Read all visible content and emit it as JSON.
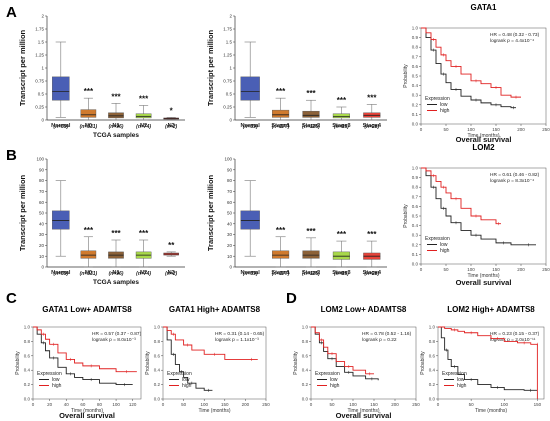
{
  "panel_letters": [
    "A",
    "B",
    "C",
    "D"
  ],
  "colors": {
    "normal": "#4a5fb5",
    "stage_n0": "#cf7a2e",
    "stage_n1": "#8c6239",
    "stage_n2": "#a8d84a",
    "stage_n3": "#e8433a",
    "km_low": "#222222",
    "km_high": "#e02020"
  },
  "chart_data": [
    {
      "id": "box-a1",
      "type": "box",
      "panel": "A",
      "ylabel": "Transcript per million",
      "xlabel": "TCGA samples",
      "ylim": [
        0,
        2
      ],
      "yticks": [
        "0",
        "0.25",
        "0.5",
        "0.75",
        "1",
        "1.25",
        "1.5",
        "1.75",
        "2"
      ],
      "categories": [
        "Normal",
        "N0",
        "N1",
        "N2",
        "N3"
      ],
      "n_labels": [
        "(n=59)",
        "(n=331)",
        "(n=96)",
        "(n=74)",
        "(n=2)"
      ],
      "significance": [
        "",
        "***",
        "***",
        "***",
        "*"
      ],
      "boxes": [
        {
          "min": 0.05,
          "q1": 0.38,
          "median": 0.55,
          "q3": 0.83,
          "max": 1.5
        },
        {
          "min": 0.0,
          "q1": 0.05,
          "median": 0.1,
          "q3": 0.2,
          "max": 0.42
        },
        {
          "min": 0.0,
          "q1": 0.04,
          "median": 0.08,
          "q3": 0.14,
          "max": 0.32
        },
        {
          "min": 0.0,
          "q1": 0.04,
          "median": 0.07,
          "q3": 0.12,
          "max": 0.28
        },
        {
          "min": 0.01,
          "q1": 0.02,
          "median": 0.03,
          "q3": 0.04,
          "max": 0.05
        }
      ]
    },
    {
      "id": "box-a2",
      "type": "box",
      "panel": "A",
      "ylabel": "Transcript per million",
      "xlabel": "",
      "ylim": [
        0,
        2
      ],
      "yticks": [
        "0",
        "0.25",
        "0.5",
        "0.75",
        "1",
        "1.25",
        "1.5",
        "1.75",
        "2"
      ],
      "categories": [
        "Normal",
        "Stage1",
        "Stage2",
        "Stage3",
        "Stage4"
      ],
      "n_labels": [
        "(n=59)",
        "(n=277)",
        "(n=125)",
        "(n=85)",
        "(n=28)"
      ],
      "significance": [
        "",
        "***",
        "***",
        "***",
        "***"
      ],
      "boxes": [
        {
          "min": 0.05,
          "q1": 0.38,
          "median": 0.55,
          "q3": 0.83,
          "max": 1.5
        },
        {
          "min": 0.0,
          "q1": 0.05,
          "median": 0.1,
          "q3": 0.19,
          "max": 0.42
        },
        {
          "min": 0.0,
          "q1": 0.05,
          "median": 0.09,
          "q3": 0.17,
          "max": 0.38
        },
        {
          "min": 0.0,
          "q1": 0.04,
          "median": 0.07,
          "q3": 0.12,
          "max": 0.25
        },
        {
          "min": 0.0,
          "q1": 0.05,
          "median": 0.09,
          "q3": 0.14,
          "max": 0.3
        }
      ]
    },
    {
      "id": "box-b1",
      "type": "box",
      "panel": "B",
      "ylabel": "Transcript per million",
      "xlabel": "TCGA samples",
      "ylim": [
        0,
        100
      ],
      "yticks": [
        "0",
        "10",
        "20",
        "30",
        "40",
        "50",
        "60",
        "70",
        "80",
        "90",
        "100"
      ],
      "categories": [
        "Normal",
        "N0",
        "N1",
        "N2",
        "N3"
      ],
      "n_labels": [
        "(n=59)",
        "(n=331)",
        "(n=96)",
        "(n=74)",
        "(n=2)"
      ],
      "significance": [
        "",
        "***",
        "***",
        "***",
        "**"
      ],
      "boxes": [
        {
          "min": 10,
          "q1": 35,
          "median": 43,
          "q3": 52,
          "max": 80
        },
        {
          "min": 0,
          "q1": 8,
          "median": 11,
          "q3": 15,
          "max": 28
        },
        {
          "min": 0,
          "q1": 8,
          "median": 11,
          "q3": 14,
          "max": 25
        },
        {
          "min": 0,
          "q1": 8,
          "median": 11,
          "q3": 14,
          "max": 25
        },
        {
          "min": 10,
          "q1": 11,
          "median": 12,
          "q3": 13,
          "max": 14
        }
      ]
    },
    {
      "id": "box-b2",
      "type": "box",
      "panel": "B",
      "ylabel": "Transcript per million",
      "xlabel": "",
      "ylim": [
        0,
        100
      ],
      "yticks": [
        "0",
        "10",
        "20",
        "30",
        "40",
        "50",
        "60",
        "70",
        "80",
        "90",
        "100"
      ],
      "categories": [
        "Normal",
        "Stage1",
        "Stage2",
        "Stage3",
        "Stage4"
      ],
      "n_labels": [
        "(n=59)",
        "(n=277)",
        "(n=125)",
        "(n=85)",
        "(n=28)"
      ],
      "significance": [
        "",
        "***",
        "***",
        "***",
        "***"
      ],
      "boxes": [
        {
          "min": 10,
          "q1": 35,
          "median": 43,
          "q3": 52,
          "max": 80
        },
        {
          "min": 0,
          "q1": 8,
          "median": 11,
          "q3": 15,
          "max": 28
        },
        {
          "min": 0,
          "q1": 8,
          "median": 11,
          "q3": 15,
          "max": 27
        },
        {
          "min": 0,
          "q1": 7,
          "median": 10,
          "q3": 14,
          "max": 24
        },
        {
          "min": 0,
          "q1": 7,
          "median": 10,
          "q3": 13,
          "max": 24
        }
      ]
    },
    {
      "id": "km-a",
      "type": "line",
      "panel": "A",
      "title": "GATA1",
      "hr": "HR = 0.48 (0.32 - 0.73)",
      "logrank": "logrank p = 4.4x10⁻⁴",
      "xlabel": "Time (months)",
      "ylabel": "Probability",
      "subtitle": "Overall survival",
      "xlim": [
        0,
        250
      ],
      "xticks": [
        "0",
        "50",
        "100",
        "150",
        "200",
        "250"
      ],
      "ylim": [
        0,
        1
      ],
      "yticks": [
        "0.0",
        "0.1",
        "0.2",
        "0.3",
        "0.4",
        "0.5",
        "0.6",
        "0.7",
        "0.8",
        "0.9",
        "1.0"
      ],
      "legend_title": "Expression",
      "series": [
        {
          "name": "low",
          "color": "#222222",
          "x": [
            0,
            10,
            20,
            30,
            40,
            50,
            60,
            80,
            100,
            120,
            140,
            160,
            180,
            190
          ],
          "y": [
            1,
            0.9,
            0.77,
            0.63,
            0.52,
            0.43,
            0.36,
            0.29,
            0.25,
            0.22,
            0.2,
            0.18,
            0.17,
            0.17
          ]
        },
        {
          "name": "high",
          "color": "#e02020",
          "x": [
            0,
            10,
            20,
            30,
            40,
            50,
            60,
            80,
            100,
            120,
            140,
            160,
            180,
            200
          ],
          "y": [
            1,
            0.95,
            0.88,
            0.8,
            0.72,
            0.66,
            0.6,
            0.52,
            0.45,
            0.42,
            0.38,
            0.3,
            0.28,
            0.28
          ]
        }
      ]
    },
    {
      "id": "km-b",
      "type": "line",
      "panel": "B",
      "title": "LOM2",
      "hr": "HR = 0.61 (0.46 - 0.82)",
      "logrank": "logrank p = 8.3x10⁻⁴",
      "xlabel": "Time (months)",
      "ylabel": "Probability",
      "subtitle": "Overall survival",
      "xlim": [
        0,
        250
      ],
      "xticks": [
        "0",
        "50",
        "100",
        "150",
        "200",
        "250"
      ],
      "ylim": [
        0,
        1
      ],
      "yticks": [
        "0.0",
        "0.1",
        "0.2",
        "0.3",
        "0.4",
        "0.5",
        "0.6",
        "0.7",
        "0.8",
        "0.9",
        "1.0"
      ],
      "legend_title": "Expression",
      "series": [
        {
          "name": "low",
          "color": "#222222",
          "x": [
            0,
            10,
            20,
            30,
            40,
            50,
            60,
            80,
            100,
            120,
            150,
            180,
            200,
            230
          ],
          "y": [
            1,
            0.92,
            0.8,
            0.68,
            0.58,
            0.5,
            0.43,
            0.35,
            0.3,
            0.26,
            0.22,
            0.2,
            0.2,
            0.2
          ]
        },
        {
          "name": "high",
          "color": "#e02020",
          "x": [
            0,
            10,
            20,
            30,
            40,
            50,
            60,
            80,
            100,
            120,
            150,
            160
          ],
          "y": [
            1,
            0.97,
            0.92,
            0.86,
            0.8,
            0.74,
            0.68,
            0.58,
            0.5,
            0.46,
            0.42,
            0.42
          ]
        }
      ]
    },
    {
      "id": "km-c1",
      "type": "line",
      "panel": "C",
      "title": "GATA1 Low+ ADAMTS8",
      "hr": "HR = 0.57 (0.37 - 0.87)",
      "logrank": "logrank p = 8.0x10⁻³",
      "xlabel": "Time (months)",
      "ylabel": "Probability",
      "subtitle": "Overall survival",
      "xlim": [
        0,
        130
      ],
      "xticks": [
        "0",
        "20",
        "40",
        "60",
        "80",
        "100",
        "120"
      ],
      "ylim": [
        0,
        1
      ],
      "yticks": [
        "0.0",
        "0.2",
        "0.4",
        "0.6",
        "0.8",
        "1.0"
      ],
      "legend_title": "Expression",
      "series": [
        {
          "name": "low",
          "color": "#222222",
          "x": [
            0,
            5,
            10,
            15,
            20,
            30,
            40,
            50,
            60,
            80,
            100,
            120
          ],
          "y": [
            1,
            0.9,
            0.78,
            0.67,
            0.57,
            0.44,
            0.35,
            0.3,
            0.27,
            0.22,
            0.2,
            0.2
          ]
        },
        {
          "name": "high",
          "color": "#e02020",
          "x": [
            0,
            5,
            10,
            15,
            20,
            30,
            40,
            50,
            60,
            80,
            100,
            125
          ],
          "y": [
            1,
            0.96,
            0.9,
            0.83,
            0.76,
            0.64,
            0.55,
            0.5,
            0.46,
            0.42,
            0.38,
            0.38
          ]
        }
      ]
    },
    {
      "id": "km-c2",
      "type": "line",
      "panel": "C",
      "title": "GATA1 High+ ADAMTS8",
      "hr": "HR = 0.31 (0.14 - 0.65)",
      "logrank": "logrank p = 1.1x10⁻³",
      "xlabel": "Time (months)",
      "ylabel": "Probability",
      "subtitle": "",
      "xlim": [
        0,
        250
      ],
      "xticks": [
        "0",
        "50",
        "100",
        "150",
        "200",
        "250"
      ],
      "ylim": [
        0,
        1
      ],
      "yticks": [
        "0.0",
        "0.2",
        "0.4",
        "0.6",
        "0.8",
        "1.0"
      ],
      "legend_title": "Expression",
      "series": [
        {
          "name": "low",
          "color": "#222222",
          "x": [
            0,
            10,
            20,
            30,
            40,
            50,
            60,
            80,
            100,
            120
          ],
          "y": [
            1,
            0.82,
            0.62,
            0.48,
            0.38,
            0.3,
            0.22,
            0.15,
            0.12,
            0.12
          ]
        },
        {
          "name": "high",
          "color": "#e02020",
          "x": [
            0,
            10,
            20,
            30,
            50,
            70,
            100,
            150,
            200,
            230
          ],
          "y": [
            1,
            0.95,
            0.9,
            0.82,
            0.75,
            0.68,
            0.62,
            0.55,
            0.55,
            0.55
          ]
        }
      ]
    },
    {
      "id": "km-d1",
      "type": "line",
      "panel": "D",
      "title": "LOM2 Low+ ADAMTS8",
      "hr": "HR = 0.78 (0.52 - 1.16)",
      "logrank": "logrank p = 0.22",
      "xlabel": "Time (months)",
      "ylabel": "Probability",
      "subtitle": "Overall survival",
      "xlim": [
        0,
        250
      ],
      "xticks": [
        "0",
        "50",
        "100",
        "150",
        "200",
        "250"
      ],
      "ylim": [
        0,
        1
      ],
      "yticks": [
        "0.0",
        "0.2",
        "0.4",
        "0.6",
        "0.8",
        "1.0"
      ],
      "legend_title": "Expression",
      "series": [
        {
          "name": "low",
          "color": "#222222",
          "x": [
            0,
            10,
            20,
            30,
            40,
            60,
            80,
            100,
            130,
            160
          ],
          "y": [
            1,
            0.9,
            0.78,
            0.66,
            0.56,
            0.45,
            0.37,
            0.32,
            0.28,
            0.26
          ]
        },
        {
          "name": "high",
          "color": "#e02020",
          "x": [
            0,
            10,
            20,
            30,
            40,
            60,
            80,
            100,
            130,
            150
          ],
          "y": [
            1,
            0.92,
            0.82,
            0.72,
            0.63,
            0.52,
            0.45,
            0.4,
            0.35,
            0.35
          ]
        }
      ]
    },
    {
      "id": "km-d2",
      "type": "line",
      "panel": "D",
      "title": "LOM2 High+ ADAMTS8",
      "hr": "HR = 0.23 (0.15 - 0.37)",
      "logrank": "logrank p = 2.0x10⁻¹¹",
      "xlabel": "Time (months)",
      "ylabel": "Probability",
      "subtitle": "",
      "xlim": [
        0,
        160
      ],
      "xticks": [
        "0",
        "50",
        "100",
        "150"
      ],
      "ylim": [
        0,
        1
      ],
      "yticks": [
        "0.0",
        "0.2",
        "0.4",
        "0.6",
        "0.8",
        "1.0"
      ],
      "legend_title": "Expression",
      "series": [
        {
          "name": "low",
          "color": "#222222",
          "x": [
            0,
            5,
            10,
            15,
            20,
            30,
            40,
            60,
            80,
            100,
            130,
            150
          ],
          "y": [
            1,
            0.85,
            0.68,
            0.55,
            0.45,
            0.34,
            0.27,
            0.2,
            0.16,
            0.13,
            0.12,
            0.12
          ]
        },
        {
          "name": "high",
          "color": "#e02020",
          "x": [
            0,
            10,
            20,
            30,
            40,
            60,
            80,
            100,
            120,
            140,
            150,
            150
          ],
          "y": [
            1,
            0.98,
            0.96,
            0.94,
            0.92,
            0.88,
            0.84,
            0.8,
            0.78,
            0.76,
            0.76,
            0
          ]
        }
      ]
    }
  ]
}
